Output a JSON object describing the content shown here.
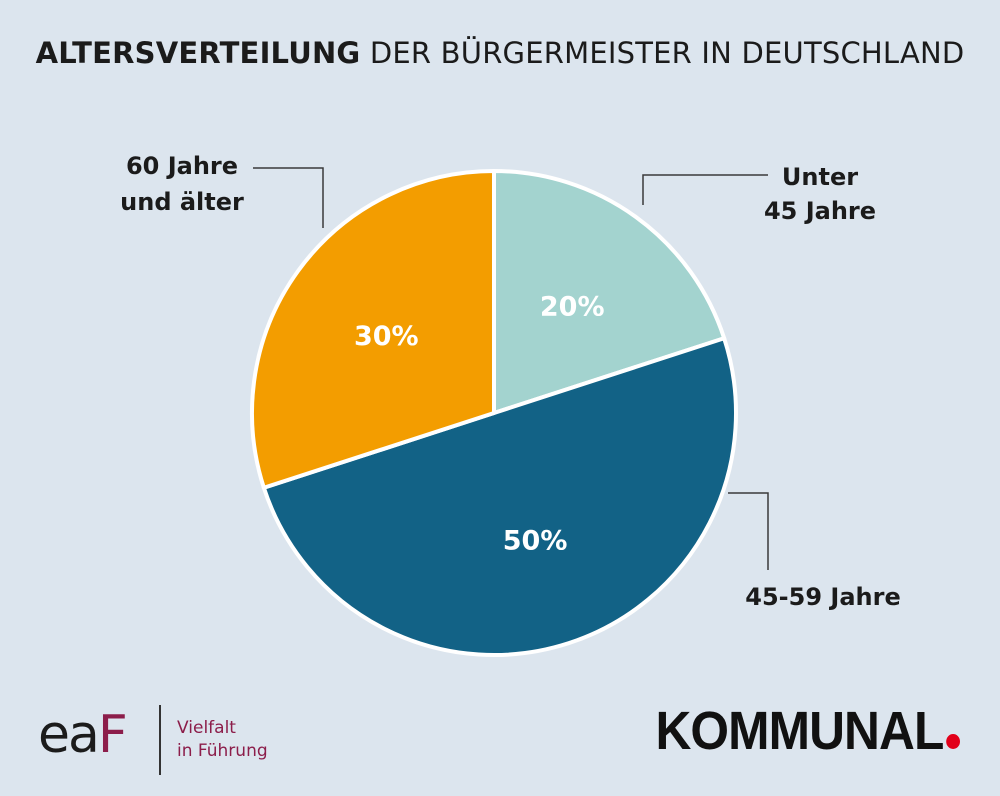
{
  "header": {
    "title_bold": "ALTERSVERTEILUNG",
    "title_rest": " DER BÜRGERMEISTER IN DEUTSCHLAND"
  },
  "colors": {
    "background": "#dce5ee",
    "slice_unter_45": "#a3d3cf",
    "slice_45_59": "#126286",
    "slice_60_plus": "#f39d00",
    "brand_eaf": "#8c1d4a",
    "brand_kommunal_dot": "#e2001a"
  },
  "chart_data": {
    "type": "pie",
    "title": "ALTERSVERTEILUNG DER BÜRGERMEISTER IN DEUTSCHLAND",
    "slices": [
      {
        "label": "Unter 45 Jahre",
        "label_lines": [
          "Unter",
          "45 Jahre"
        ],
        "value": 20,
        "value_label": "20%",
        "color": "#a3d3cf"
      },
      {
        "label": "45-59 Jahre",
        "label_lines": [
          "45-59 Jahre"
        ],
        "value": 50,
        "value_label": "50%",
        "color": "#126286"
      },
      {
        "label": "60 Jahre und älter",
        "label_lines": [
          "60 Jahre",
          "und älter"
        ],
        "value": 30,
        "value_label": "30%",
        "color": "#f39d00"
      }
    ]
  },
  "footer": {
    "eaf_logo": {
      "mark_a": "ea",
      "mark_b": "F",
      "tagline_line1": "Vielfalt",
      "tagline_line2": "in Führung"
    },
    "kommunal_logo": {
      "text": "KOMMUNAL"
    }
  }
}
